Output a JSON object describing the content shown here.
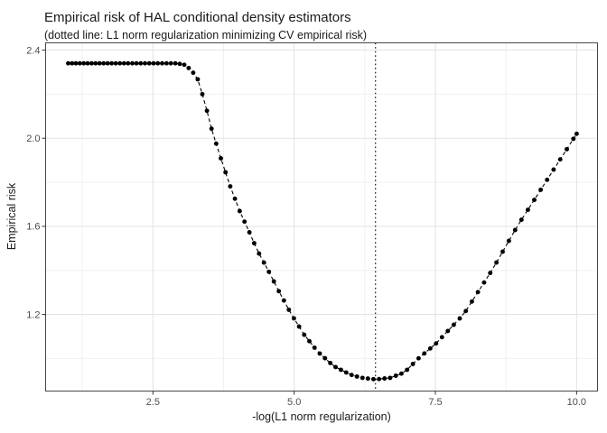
{
  "title": "Empirical risk of HAL conditional density estimators",
  "subtitle": "(dotted line: L1 norm regularization minimizing CV empirical risk)",
  "chart_data": {
    "type": "scatter",
    "title": "Empirical risk of HAL conditional density estimators",
    "subtitle": "(dotted line: L1 norm regularization minimizing CV empirical risk)",
    "xlabel": "-log(L1 norm regularization)",
    "ylabel": "Empirical risk",
    "xlim": [
      0.6,
      10.37
    ],
    "ylim": [
      0.852,
      2.433
    ],
    "x_ticks": [
      2.5,
      5.0,
      7.5,
      10.0
    ],
    "x_tick_labels": [
      "2.5",
      "5.0",
      "7.5",
      "10.0"
    ],
    "y_ticks": [
      1.2,
      1.6,
      2.0,
      2.4
    ],
    "y_tick_labels": [
      "1.2",
      "1.6",
      "2.0",
      "2.4"
    ],
    "x_minor_ticks": [
      1.25,
      3.75,
      6.25,
      8.75
    ],
    "y_minor_ticks": [
      1.0,
      1.4,
      1.8,
      2.2
    ],
    "grid": true,
    "legend": "none",
    "vline": {
      "x": 6.44,
      "style": "dotted",
      "color": "#000000",
      "meaning": "L1 norm regularization minimizing CV empirical risk"
    },
    "point_style": {
      "shape": "circle",
      "radius": 2.45,
      "color": "#000000"
    },
    "line_style": {
      "dash": "dashed",
      "width": 1.1,
      "color": "#000000"
    },
    "series": [
      {
        "name": "CV empirical risk",
        "flat_start_value": 2.34,
        "minimum": {
          "x": 6.44,
          "y": 0.905
        },
        "end_value": {
          "x": 10.0,
          "y": 2.02
        },
        "anchors": [
          [
            1.0,
            2.34
          ],
          [
            2.92,
            2.34
          ],
          [
            3.05,
            2.334
          ],
          [
            3.18,
            2.31
          ],
          [
            3.3,
            2.265
          ],
          [
            3.42,
            2.16
          ],
          [
            3.54,
            2.04
          ],
          [
            3.7,
            1.91
          ],
          [
            3.87,
            1.78
          ],
          [
            4.05,
            1.66
          ],
          [
            4.16,
            1.6
          ],
          [
            4.35,
            1.49
          ],
          [
            4.54,
            1.4
          ],
          [
            4.74,
            1.3
          ],
          [
            4.93,
            1.21
          ],
          [
            5.17,
            1.11
          ],
          [
            5.42,
            1.03
          ],
          [
            5.7,
            0.965
          ],
          [
            6.0,
            0.926
          ],
          [
            6.2,
            0.912
          ],
          [
            6.44,
            0.905
          ],
          [
            6.7,
            0.912
          ],
          [
            6.95,
            0.936
          ],
          [
            7.2,
            1.0
          ],
          [
            7.5,
            1.065
          ],
          [
            8.0,
            1.2
          ],
          [
            8.5,
            1.4
          ],
          [
            8.95,
            1.6
          ],
          [
            9.5,
            1.82
          ],
          [
            10.0,
            2.02
          ]
        ],
        "sampling": {
          "x_start": 1.0,
          "x_end": 10.0,
          "spacing_start": 0.068,
          "spacing_end": 0.118
        }
      }
    ],
    "colors": {
      "background": "#ffffff",
      "panel_background": "#ffffff",
      "panel_border": "#474747",
      "grid_major": "#e2e2e2",
      "grid_minor": "#f0f0f0",
      "tick_mark": "#333333",
      "tick_label": "#4d4d4d",
      "text": "#1a1a1a",
      "data": "#000000"
    }
  }
}
